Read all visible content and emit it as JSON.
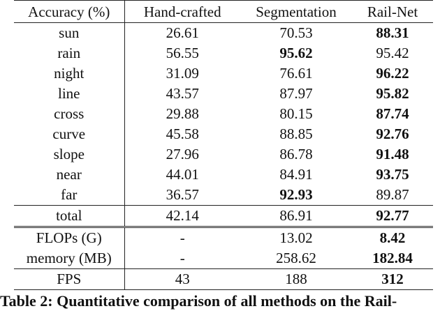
{
  "table": {
    "headers": [
      "Accuracy (%)",
      "Hand-crafted",
      "Segmentation",
      "Rail-Net"
    ],
    "rows": [
      {
        "label": "sun",
        "values": [
          "26.61",
          "70.53",
          "88.31"
        ],
        "best": 2
      },
      {
        "label": "rain",
        "values": [
          "56.55",
          "95.62",
          "95.42"
        ],
        "best": 1
      },
      {
        "label": "night",
        "values": [
          "31.09",
          "76.61",
          "96.22"
        ],
        "best": 2
      },
      {
        "label": "line",
        "values": [
          "43.57",
          "87.97",
          "95.82"
        ],
        "best": 2
      },
      {
        "label": "cross",
        "values": [
          "29.88",
          "80.15",
          "87.74"
        ],
        "best": 2
      },
      {
        "label": "curve",
        "values": [
          "45.58",
          "88.85",
          "92.76"
        ],
        "best": 2
      },
      {
        "label": "slope",
        "values": [
          "27.96",
          "86.78",
          "91.48"
        ],
        "best": 2
      },
      {
        "label": "near",
        "values": [
          "44.01",
          "84.91",
          "93.75"
        ],
        "best": 2
      },
      {
        "label": "far",
        "values": [
          "36.57",
          "92.93",
          "89.87"
        ],
        "best": 1
      }
    ],
    "total": {
      "label": "total",
      "values": [
        "42.14",
        "86.91",
        "92.77"
      ],
      "best": 2
    },
    "cost_rows": [
      {
        "label": "FLOPs (G)",
        "values": [
          "-",
          "13.02",
          "8.42"
        ],
        "best": 2
      },
      {
        "label": "memory (MB)",
        "values": [
          "-",
          "258.62",
          "182.84"
        ],
        "best": 2
      }
    ],
    "fps": {
      "label": "FPS",
      "values": [
        "43",
        "188",
        "312"
      ],
      "best": 2
    }
  },
  "caption": "Table 2: Quantitative comparison of all methods on the Rail-"
}
